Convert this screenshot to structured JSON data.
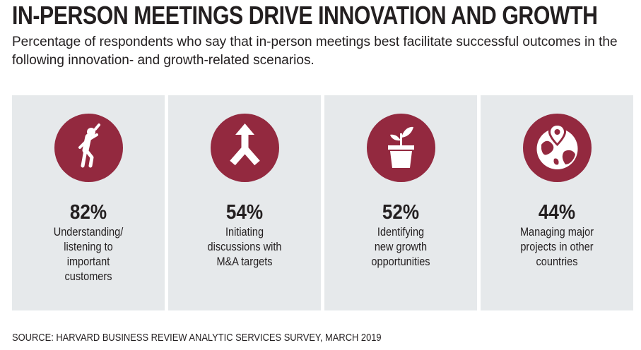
{
  "chart_data": {
    "type": "bar",
    "title": "IN-PERSON MEETINGS DRIVE INNOVATION AND GROWTH",
    "subtitle": "Percentage of respondents who say that in-person meetings best facilitate successful outcomes in the following innovation- and growth-related scenarios.",
    "unit": "%",
    "categories": [
      "Understanding/ listening to important customers",
      "Initiating discussions with M&A targets",
      "Identifying new growth opportunities",
      "Managing major projects in other countries"
    ],
    "values": [
      82,
      54,
      52,
      44
    ],
    "labels": [
      "82%",
      "54%",
      "52%",
      "44%"
    ],
    "source": "SOURCE: HARVARD BUSINESS REVIEW ANALYTIC SERVICES SURVEY, MARCH 2019"
  },
  "panels": [
    {
      "pct": "82%",
      "lines": [
        "Understanding/",
        "listening to",
        "important",
        "customers"
      ],
      "icon": "person-listening-icon"
    },
    {
      "pct": "54%",
      "lines": [
        "Initiating",
        "discussions with",
        "M&A targets"
      ],
      "icon": "merge-arrow-icon"
    },
    {
      "pct": "52%",
      "lines": [
        "Identifying",
        "new growth",
        "opportunities"
      ],
      "icon": "plant-pot-icon"
    },
    {
      "pct": "44%",
      "lines": [
        "Managing major",
        "projects in other",
        "countries"
      ],
      "icon": "globe-pin-icon"
    }
  ],
  "colors": {
    "accent": "#93293f",
    "panel_bg": "#e6e9eb",
    "text": "#231f20"
  }
}
